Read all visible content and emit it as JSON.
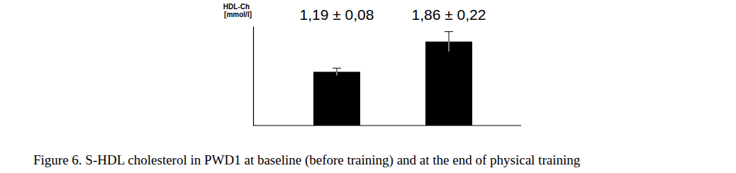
{
  "chart_data": {
    "type": "bar",
    "categories": [
      null,
      null
    ],
    "values": [
      1.19,
      1.86
    ],
    "errors": [
      0.08,
      0.22
    ],
    "value_labels": [
      "1,19 ± 0,08",
      "1,86 ± 0,22"
    ],
    "data_labels": true,
    "tick_labels": false,
    "ylabel": "HDL-Ch [mmol/l]",
    "caption": "Figure 6. S-HDL cholesterol in PWD1 at baseline (before training) and at the end of physical training",
    "color": "#000000",
    "ylim": [
      0,
      2.2
    ]
  }
}
